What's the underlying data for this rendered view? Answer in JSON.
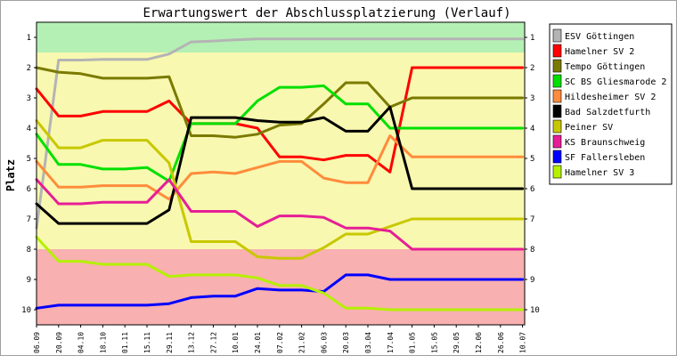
{
  "chart_data": {
    "type": "line",
    "title": "Erwartungswert der Abschlussplatzierung (Verlauf)",
    "ylabel": "Platz",
    "xlabel": "",
    "ylim": [
      1,
      10
    ],
    "y_inverted": true,
    "y_ticks": [
      "1",
      "2",
      "3",
      "4",
      "5",
      "6",
      "7",
      "8",
      "9",
      "10"
    ],
    "categories": [
      "06.09",
      "20.09",
      "04.10",
      "18.10",
      "01.11",
      "15.11",
      "29.11",
      "13.12",
      "27.12",
      "10.01",
      "24.01",
      "07.02",
      "21.02",
      "06.03",
      "20.03",
      "03.04",
      "17.04",
      "01.05",
      "15.05",
      "29.05",
      "12.06",
      "26.06",
      "10.07"
    ],
    "legend_position": "right",
    "grid": false,
    "zones": [
      {
        "name": "promotion",
        "color": "#b4f0b4"
      },
      {
        "name": "middle",
        "color": "#f8f8b0"
      },
      {
        "name": "relegation",
        "color": "#f8b0b0"
      }
    ],
    "series": [
      {
        "name": "ESV Göttingen",
        "color": "#b4b4b4",
        "values": [
          7.3,
          1.75,
          1.75,
          1.73,
          1.73,
          1.73,
          1.55,
          1.15,
          1.12,
          1.08,
          1.05,
          1.05,
          1.05,
          1.05,
          1.05,
          1.05,
          1.05,
          1.05,
          1.05,
          1.05,
          1.05,
          1.05,
          1.05
        ]
      },
      {
        "name": "Hamelner SV 2",
        "color": "#ff0000",
        "values": [
          2.7,
          3.6,
          3.6,
          3.45,
          3.45,
          3.45,
          3.1,
          3.85,
          3.85,
          3.85,
          4.0,
          4.95,
          4.95,
          5.05,
          4.9,
          4.9,
          5.45,
          2.0,
          2.0,
          2.0,
          2.0,
          2.0,
          2.0
        ]
      },
      {
        "name": "Tempo Göttingen",
        "color": "#7a7a00",
        "values": [
          2.0,
          2.15,
          2.2,
          2.35,
          2.35,
          2.35,
          2.3,
          4.25,
          4.25,
          4.3,
          4.2,
          3.9,
          3.85,
          3.2,
          2.5,
          2.5,
          3.3,
          3.0,
          3.0,
          3.0,
          3.0,
          3.0,
          3.0
        ]
      },
      {
        "name": "SC BS Gliesmarode 2",
        "color": "#00e000",
        "values": [
          4.2,
          5.2,
          5.2,
          5.35,
          5.35,
          5.3,
          5.75,
          3.85,
          3.85,
          3.85,
          3.1,
          2.65,
          2.65,
          2.6,
          3.2,
          3.2,
          4.0,
          4.0,
          4.0,
          4.0,
          4.0,
          4.0,
          4.0
        ]
      },
      {
        "name": "Hildesheimer SV 2",
        "color": "#ff8c3c",
        "values": [
          5.1,
          5.95,
          5.95,
          5.9,
          5.9,
          5.9,
          6.35,
          5.5,
          5.45,
          5.5,
          5.3,
          5.1,
          5.1,
          5.65,
          5.8,
          5.8,
          4.25,
          4.95,
          4.95,
          4.95,
          4.95,
          4.95,
          4.95
        ]
      },
      {
        "name": "Bad Salzdetfurth",
        "color": "#000000",
        "values": [
          6.5,
          7.15,
          7.15,
          7.15,
          7.15,
          7.15,
          6.7,
          3.65,
          3.65,
          3.65,
          3.75,
          3.8,
          3.8,
          3.65,
          4.1,
          4.1,
          3.3,
          6.0,
          6.0,
          6.0,
          6.0,
          6.0,
          6.0
        ]
      },
      {
        "name": "Peiner SV",
        "color": "#c8c800",
        "values": [
          3.75,
          4.65,
          4.65,
          4.4,
          4.4,
          4.4,
          5.15,
          7.75,
          7.75,
          7.75,
          8.25,
          8.3,
          8.3,
          7.95,
          7.5,
          7.5,
          7.25,
          7.0,
          7.0,
          7.0,
          7.0,
          7.0,
          7.0
        ]
      },
      {
        "name": "KS Braunschweig",
        "color": "#e61e96",
        "values": [
          5.7,
          6.5,
          6.5,
          6.45,
          6.45,
          6.45,
          5.7,
          6.75,
          6.75,
          6.75,
          7.25,
          6.9,
          6.9,
          6.95,
          7.3,
          7.3,
          7.4,
          8.0,
          8.0,
          8.0,
          8.0,
          8.0,
          8.0
        ]
      },
      {
        "name": "SF Fallersleben",
        "color": "#0000ff",
        "values": [
          9.95,
          9.85,
          9.85,
          9.85,
          9.85,
          9.85,
          9.8,
          9.6,
          9.55,
          9.55,
          9.3,
          9.35,
          9.35,
          9.4,
          8.85,
          8.85,
          9.0,
          9.0,
          9.0,
          9.0,
          9.0,
          9.0,
          9.0
        ]
      },
      {
        "name": "Hamelner SV 3",
        "color": "#b4f000",
        "values": [
          7.6,
          8.4,
          8.4,
          8.5,
          8.5,
          8.5,
          8.9,
          8.85,
          8.85,
          8.85,
          8.95,
          9.2,
          9.2,
          9.45,
          9.95,
          9.95,
          10.0,
          10.0,
          10.0,
          10.0,
          10.0,
          10.0,
          10.0
        ]
      }
    ]
  }
}
